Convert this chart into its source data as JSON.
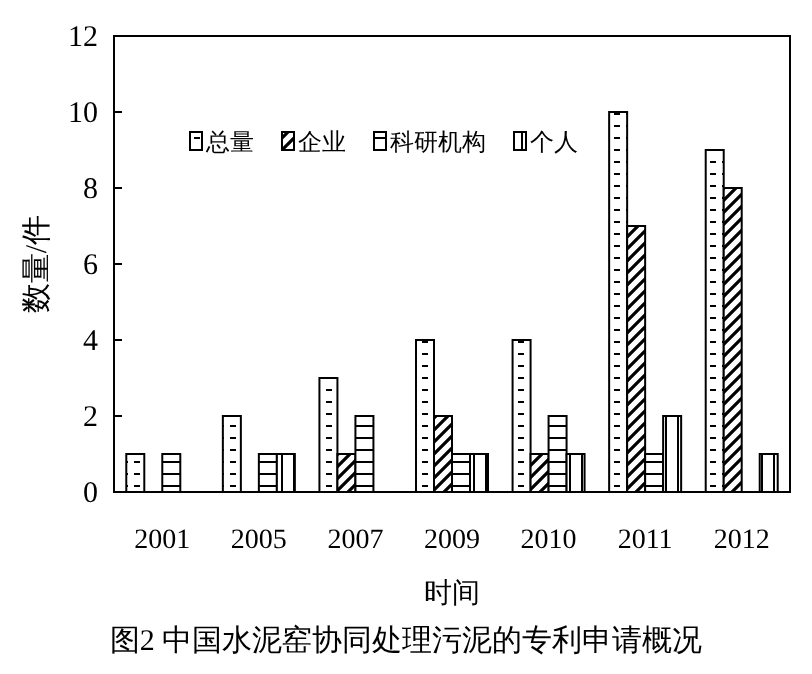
{
  "chart_data": {
    "type": "bar",
    "title": "图2 中国水泥窑协同处理污泥的专利申请概况",
    "xlabel": "时间",
    "ylabel": "数量/件",
    "categories": [
      "2001",
      "2005",
      "2007",
      "2009",
      "2010",
      "2011",
      "2012"
    ],
    "series": [
      {
        "name": "总量",
        "color": "#000000",
        "values": [
          1,
          2,
          3,
          4,
          4,
          10,
          9
        ]
      },
      {
        "name": "企业",
        "color": "#000000",
        "values": [
          0,
          0,
          1,
          2,
          1,
          7,
          8
        ]
      },
      {
        "name": "科研机构",
        "color": "#000000",
        "values": [
          1,
          1,
          2,
          1,
          2,
          1,
          0
        ]
      },
      {
        "name": "个人",
        "color": "#000000",
        "values": [
          0,
          1,
          0,
          1,
          1,
          2,
          1
        ]
      }
    ],
    "ylim": [
      0,
      12
    ],
    "yticks": [
      0,
      2,
      4,
      6,
      8,
      10,
      12
    ],
    "grid": false,
    "legend": "top"
  }
}
